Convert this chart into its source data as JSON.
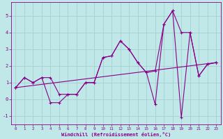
{
  "xlabel": "Windchill (Refroidissement éolien,°C)",
  "xlim": [
    -0.5,
    23.5
  ],
  "ylim": [
    -1.5,
    5.8
  ],
  "yticks": [
    -1,
    0,
    1,
    2,
    3,
    4,
    5
  ],
  "xticks": [
    0,
    1,
    2,
    3,
    4,
    5,
    6,
    7,
    8,
    9,
    10,
    11,
    12,
    13,
    14,
    15,
    16,
    17,
    18,
    19,
    20,
    21,
    22,
    23
  ],
  "bg_color": "#c0e8e8",
  "grid_color": "#a0cccc",
  "line_color": "#880088",
  "series1_x": [
    0,
    1,
    2,
    3,
    4,
    5,
    6,
    7,
    8,
    9,
    10,
    11,
    12,
    13,
    14,
    15,
    16,
    17,
    18,
    19,
    20,
    21,
    22,
    23
  ],
  "series1_y": [
    0.7,
    1.3,
    1.0,
    1.3,
    1.3,
    0.3,
    0.3,
    0.3,
    1.0,
    1.0,
    2.5,
    2.6,
    3.5,
    3.0,
    2.2,
    1.6,
    1.7,
    4.5,
    5.3,
    4.0,
    4.0,
    1.4,
    2.1,
    2.2
  ],
  "series2_x": [
    0,
    1,
    2,
    3,
    4,
    5,
    6,
    7,
    8,
    9,
    10,
    11,
    12,
    13,
    14,
    15,
    16,
    17,
    18,
    19,
    20,
    21,
    22,
    23
  ],
  "series2_y": [
    0.7,
    1.3,
    1.0,
    1.3,
    -0.2,
    -0.2,
    0.3,
    0.3,
    1.0,
    1.0,
    2.5,
    2.6,
    3.5,
    3.0,
    2.2,
    1.6,
    -0.3,
    4.5,
    5.3,
    -1.1,
    4.0,
    1.4,
    2.1,
    2.2
  ],
  "series3_x": [
    0,
    23
  ],
  "series3_y": [
    0.7,
    2.2
  ]
}
